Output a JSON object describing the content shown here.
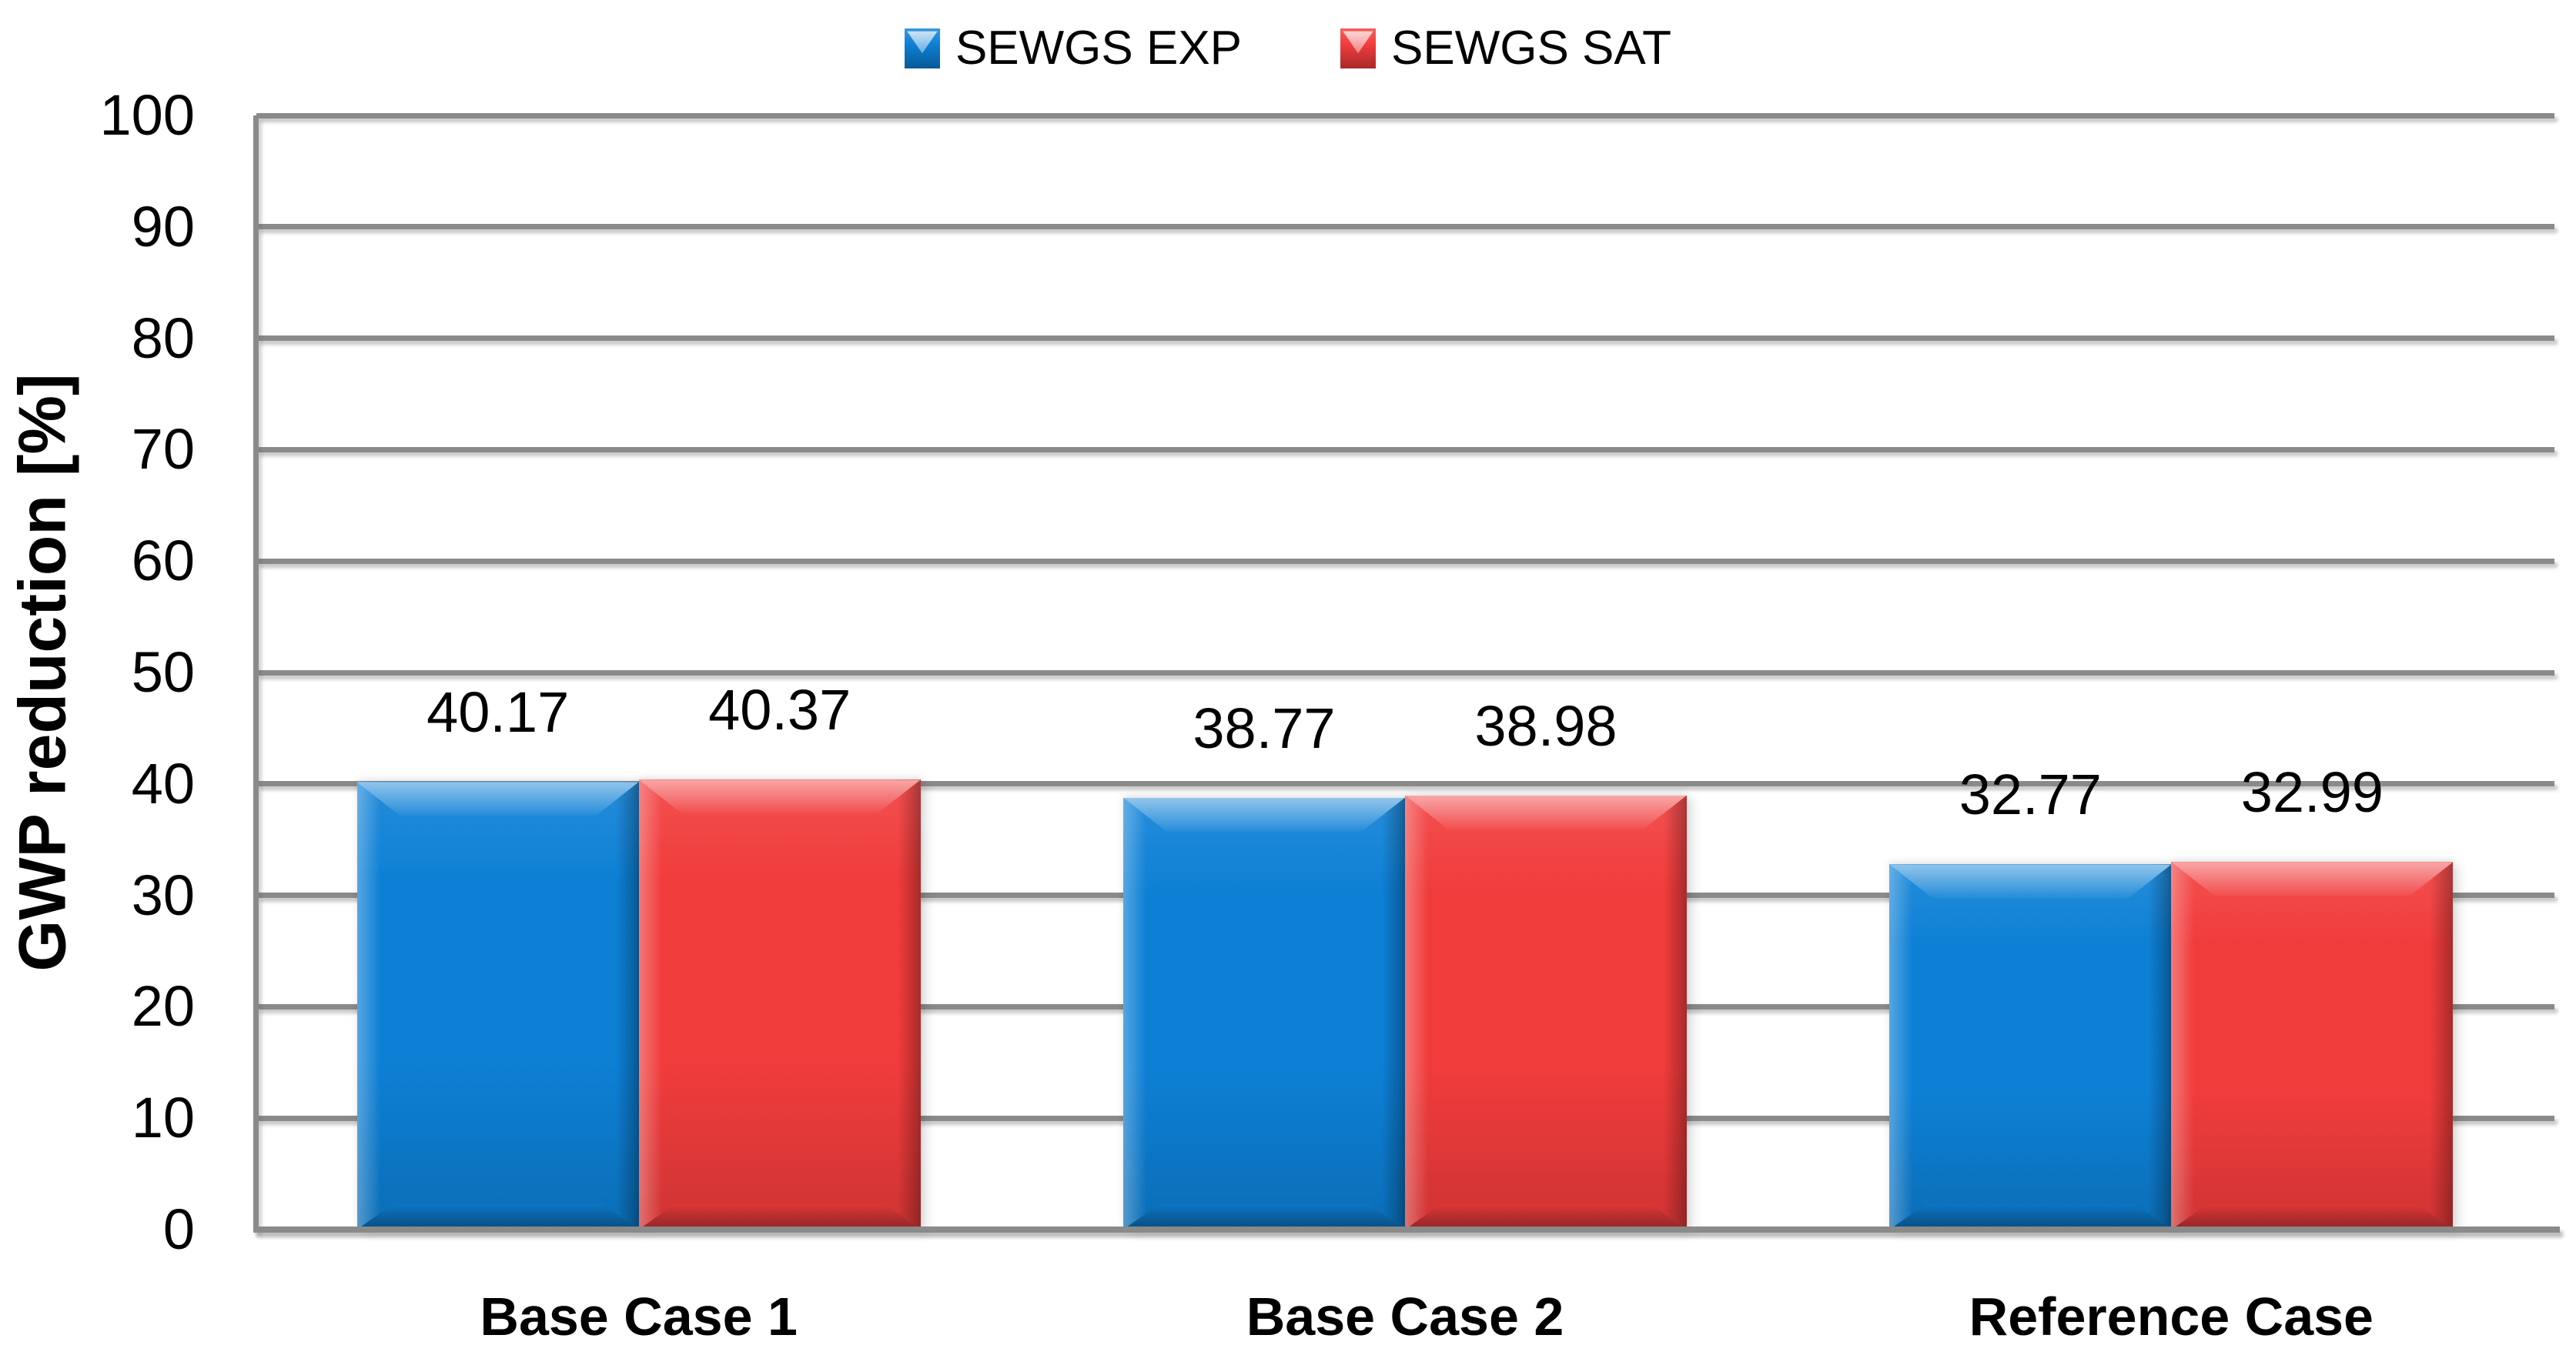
{
  "chart_data": {
    "type": "bar",
    "title": "",
    "categories": [
      "Base Case 1",
      "Base Case 2",
      "Reference Case"
    ],
    "series": [
      {
        "name": "SEWGS EXP",
        "color": "#0d80d5",
        "values": [
          40.17,
          38.77,
          32.77
        ]
      },
      {
        "name": "SEWGS SAT",
        "color": "#f13c3c",
        "values": [
          40.37,
          38.98,
          32.99
        ]
      }
    ],
    "ylabel": "GWP reduction [%]",
    "ylim": [
      0,
      100
    ],
    "ytick_step": 10,
    "yticks": [
      0,
      10,
      20,
      30,
      40,
      50,
      60,
      70,
      80,
      90,
      100
    ],
    "grid": true,
    "legend_position": "top",
    "data_labels": true
  },
  "colors": {
    "gridline": "#8a8a8a",
    "axis": "#8a8a8a",
    "text": "#000000",
    "background": "#ffffff"
  }
}
